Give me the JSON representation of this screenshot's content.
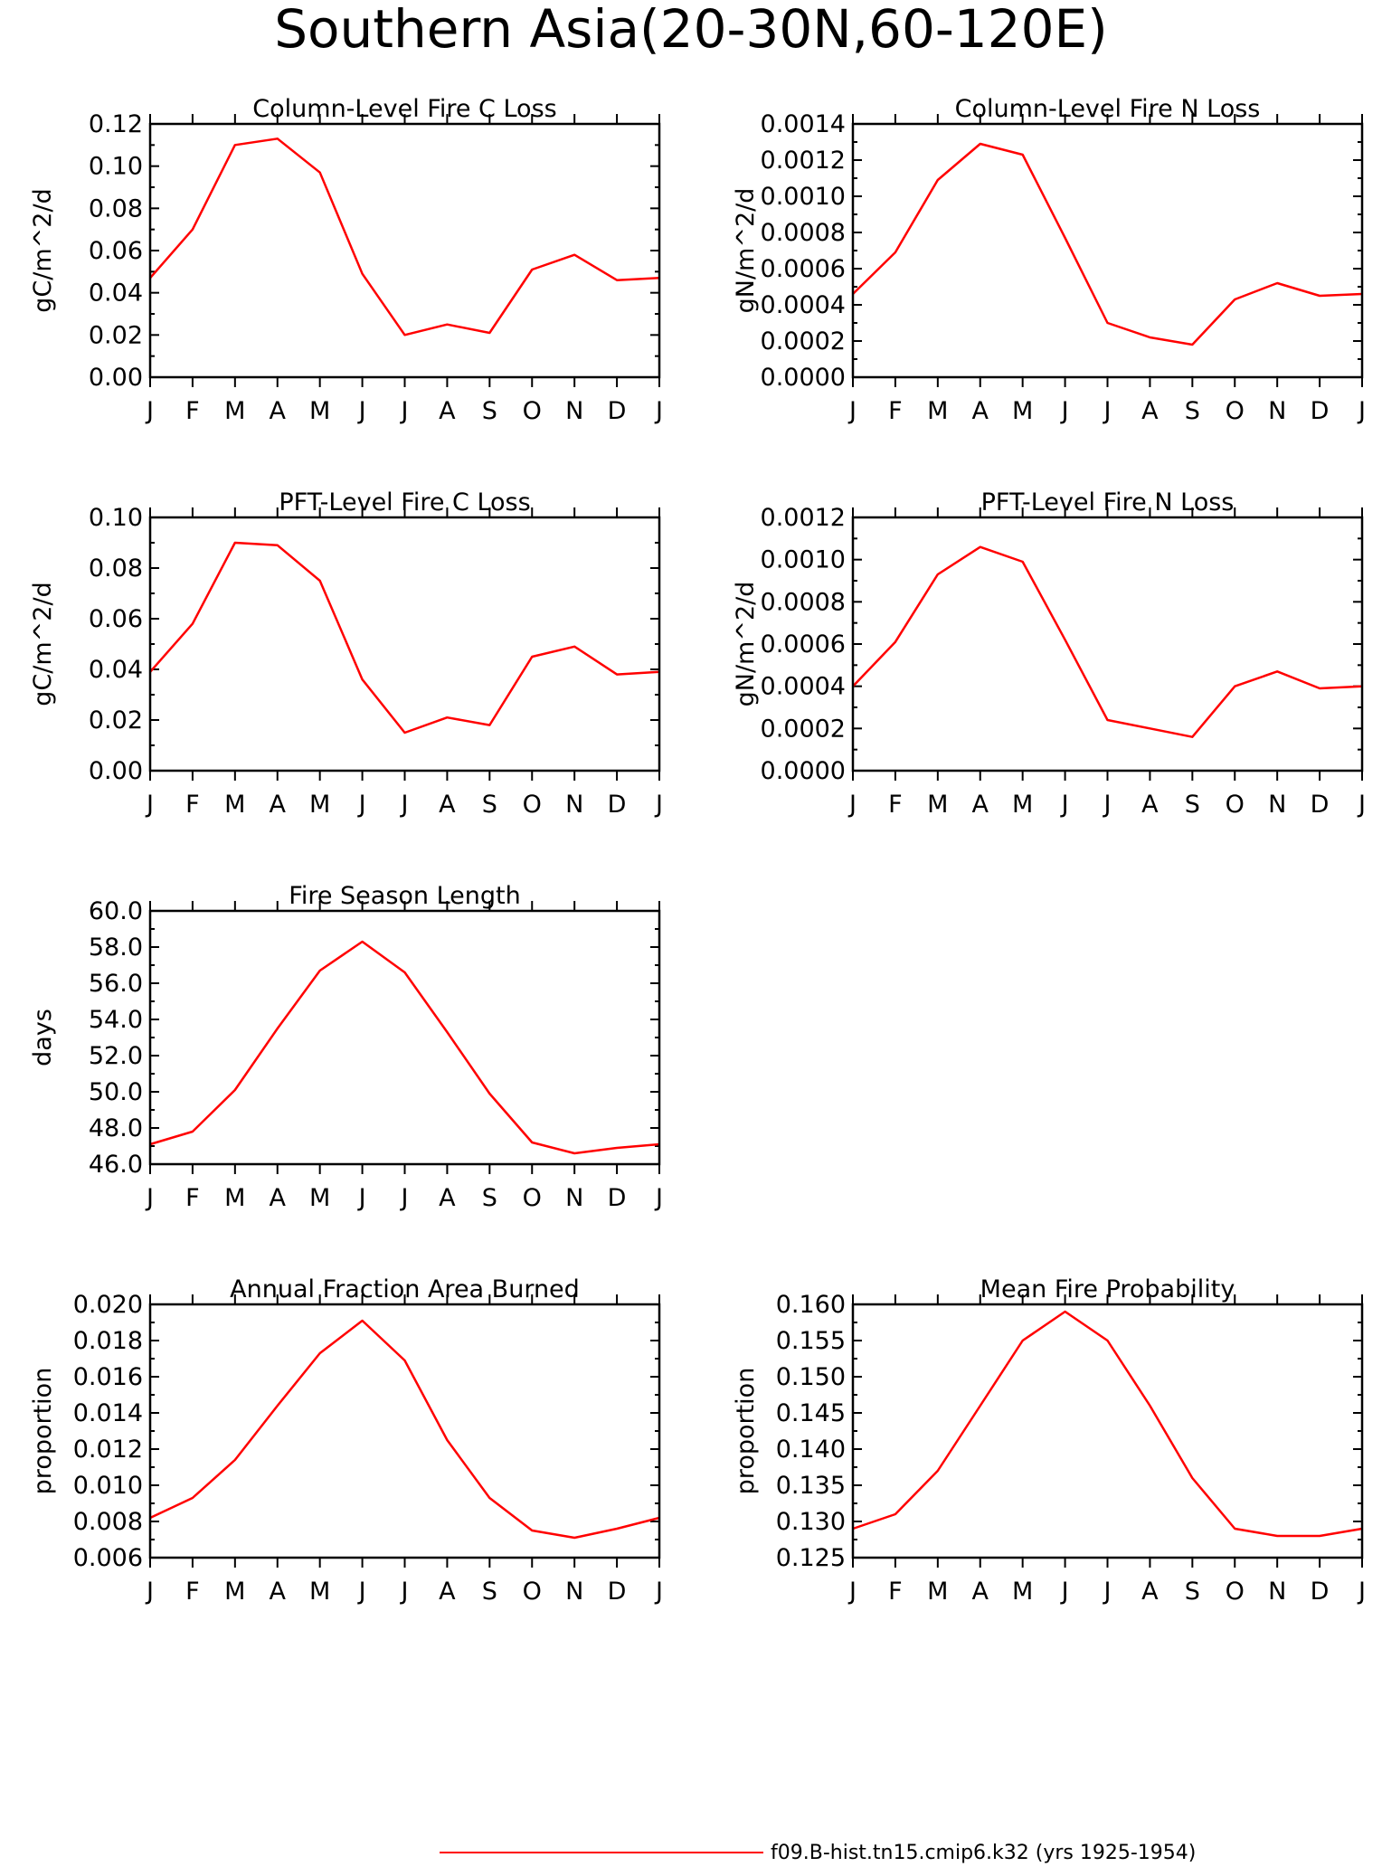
{
  "title": "Southern Asia(20-30N,60-120E)",
  "legend": {
    "label": "f09.B-hist.tn15.cmip6.k32 (yrs 1925-1954)",
    "color": "#ff0000"
  },
  "chart_data": [
    {
      "type": "line",
      "title": "Column-Level Fire C Loss",
      "ylabel": "gC/m^2/d",
      "categories": [
        "J",
        "F",
        "M",
        "A",
        "M",
        "J",
        "J",
        "A",
        "S",
        "O",
        "N",
        "D",
        "J"
      ],
      "ylim": [
        0,
        0.12
      ],
      "yticks": [
        "0.00",
        "0.02",
        "0.04",
        "0.06",
        "0.08",
        "0.10",
        "0.12"
      ],
      "series": [
        {
          "values": [
            0.047,
            0.07,
            0.11,
            0.113,
            0.097,
            0.049,
            0.02,
            0.025,
            0.021,
            0.051,
            0.058,
            0.046,
            0.047
          ]
        }
      ]
    },
    {
      "type": "line",
      "title": "Column-Level Fire N Loss",
      "ylabel": "gN/m^2/d",
      "categories": [
        "J",
        "F",
        "M",
        "A",
        "M",
        "J",
        "J",
        "A",
        "S",
        "O",
        "N",
        "D",
        "J"
      ],
      "ylim": [
        0,
        0.0014
      ],
      "yticks": [
        "0.0000",
        "0.0002",
        "0.0004",
        "0.0006",
        "0.0008",
        "0.0010",
        "0.0012",
        "0.0014"
      ],
      "series": [
        {
          "values": [
            0.00046,
            0.00069,
            0.00109,
            0.00129,
            0.00123,
            0.00077,
            0.0003,
            0.00022,
            0.00018,
            0.00043,
            0.00052,
            0.00045,
            0.00046
          ]
        }
      ]
    },
    {
      "type": "line",
      "title": "PFT-Level Fire C Loss",
      "ylabel": "gC/m^2/d",
      "categories": [
        "J",
        "F",
        "M",
        "A",
        "M",
        "J",
        "J",
        "A",
        "S",
        "O",
        "N",
        "D",
        "J"
      ],
      "ylim": [
        0,
        0.1
      ],
      "yticks": [
        "0.00",
        "0.02",
        "0.04",
        "0.06",
        "0.08",
        "0.10"
      ],
      "series": [
        {
          "values": [
            0.039,
            0.058,
            0.09,
            0.089,
            0.075,
            0.036,
            0.015,
            0.021,
            0.018,
            0.045,
            0.049,
            0.038,
            0.039
          ]
        }
      ]
    },
    {
      "type": "line",
      "title": "PFT-Level Fire N Loss",
      "ylabel": "gN/m^2/d",
      "categories": [
        "J",
        "F",
        "M",
        "A",
        "M",
        "J",
        "J",
        "A",
        "S",
        "O",
        "N",
        "D",
        "J"
      ],
      "ylim": [
        0,
        0.0012
      ],
      "yticks": [
        "0.0000",
        "0.0002",
        "0.0004",
        "0.0006",
        "0.0008",
        "0.0010",
        "0.0012"
      ],
      "series": [
        {
          "values": [
            0.0004,
            0.00061,
            0.00093,
            0.00106,
            0.00099,
            0.00062,
            0.00024,
            0.0002,
            0.00016,
            0.0004,
            0.00047,
            0.00039,
            0.0004
          ]
        }
      ]
    },
    {
      "type": "line",
      "title": "Fire Season Length",
      "ylabel": "days",
      "categories": [
        "J",
        "F",
        "M",
        "A",
        "M",
        "J",
        "J",
        "A",
        "S",
        "O",
        "N",
        "D",
        "J"
      ],
      "ylim": [
        46,
        60
      ],
      "yticks": [
        "46.0",
        "48.0",
        "50.0",
        "52.0",
        "54.0",
        "56.0",
        "58.0",
        "60.0"
      ],
      "series": [
        {
          "values": [
            47.1,
            47.8,
            50.1,
            53.5,
            56.7,
            58.3,
            56.6,
            53.3,
            49.9,
            47.2,
            46.6,
            46.9,
            47.1
          ]
        }
      ]
    },
    {
      "type": "line",
      "title": "Annual Fraction Area Burned",
      "ylabel": "proportion",
      "categories": [
        "J",
        "F",
        "M",
        "A",
        "M",
        "J",
        "J",
        "A",
        "S",
        "O",
        "N",
        "D",
        "J"
      ],
      "ylim": [
        0.006,
        0.02
      ],
      "yticks": [
        "0.006",
        "0.008",
        "0.010",
        "0.012",
        "0.014",
        "0.016",
        "0.018",
        "0.020"
      ],
      "series": [
        {
          "values": [
            0.0082,
            0.0093,
            0.0114,
            0.0144,
            0.0173,
            0.0191,
            0.0169,
            0.0125,
            0.0093,
            0.0075,
            0.0071,
            0.0076,
            0.0082
          ]
        }
      ]
    },
    {
      "type": "line",
      "title": "Mean Fire Probability",
      "ylabel": "proportion",
      "categories": [
        "J",
        "F",
        "M",
        "A",
        "M",
        "J",
        "J",
        "A",
        "S",
        "O",
        "N",
        "D",
        "J"
      ],
      "ylim": [
        0.125,
        0.16
      ],
      "yticks": [
        "0.125",
        "0.130",
        "0.135",
        "0.140",
        "0.145",
        "0.150",
        "0.155",
        "0.160"
      ],
      "series": [
        {
          "values": [
            0.129,
            0.131,
            0.137,
            0.146,
            0.155,
            0.159,
            0.155,
            0.146,
            0.136,
            0.129,
            0.128,
            0.128,
            0.129
          ]
        }
      ]
    }
  ]
}
